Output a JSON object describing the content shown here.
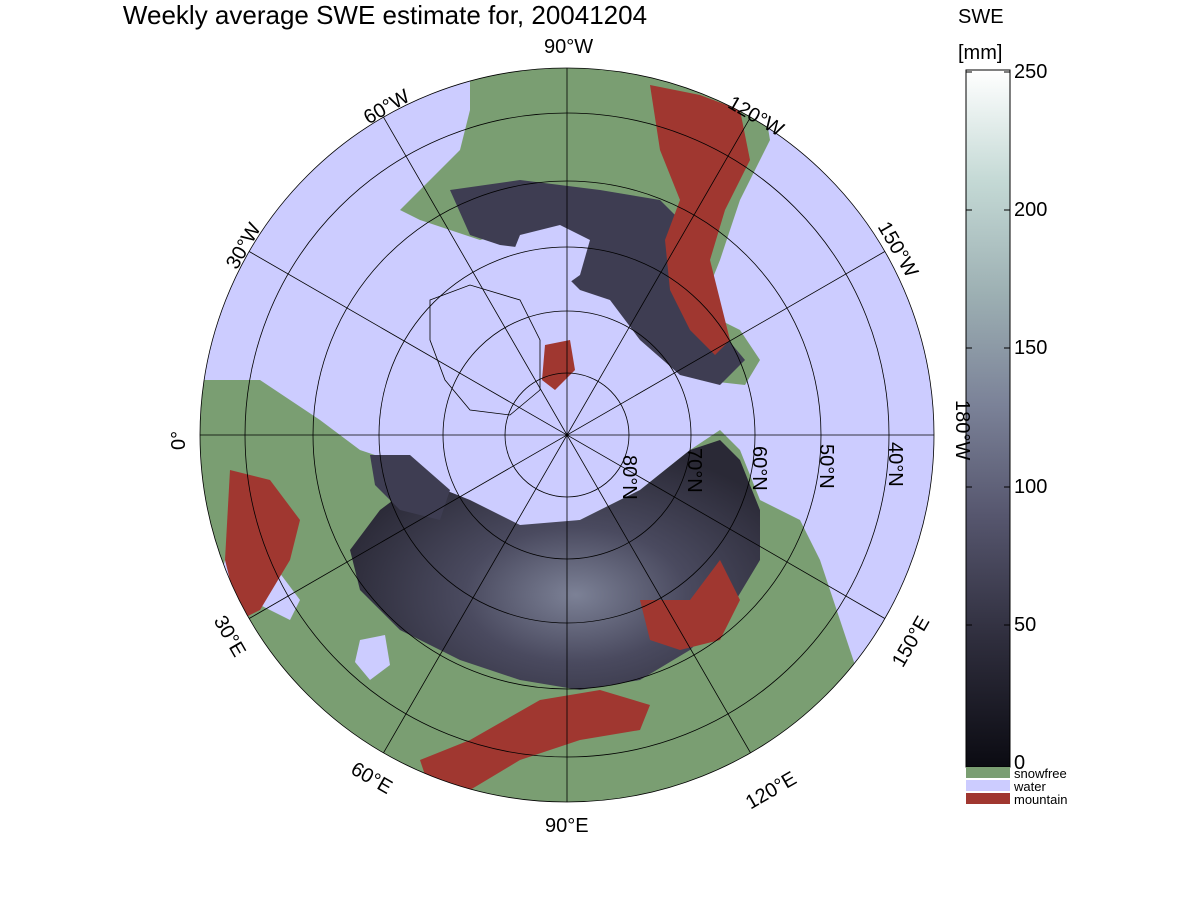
{
  "title": "Weekly average SWE estimate for, 20041204",
  "colorbar": {
    "title_line1": "SWE",
    "title_line2": "[mm]",
    "ticks": [
      "250",
      "200",
      "150",
      "100",
      "50",
      "0"
    ],
    "gradient": [
      "#0b0b12",
      "#2e2d3c",
      "#56566e",
      "#7b8298",
      "#9db0b3",
      "#c4d9d5",
      "#ffffff"
    ]
  },
  "legend": {
    "items": [
      {
        "label": "snowfree",
        "color": "#7a9e72"
      },
      {
        "label": "water",
        "color": "#ccccff"
      },
      {
        "label": "mountain",
        "color": "#a03730"
      }
    ]
  },
  "map": {
    "projection": "north polar stereographic",
    "ocean_color": "#ccccff",
    "land_color": "#7a9e72",
    "snow_color": "#3e3d52",
    "mountain_color": "#a03730",
    "longitude_labels": [
      "90°W",
      "120°W",
      "150°W",
      "180°W",
      "150°E",
      "120°E",
      "90°E",
      "60°E",
      "30°E",
      "0°",
      "30°W",
      "60°W"
    ],
    "latitude_labels": [
      "80°N",
      "70°N",
      "60°N",
      "50°N",
      "40°N"
    ]
  }
}
